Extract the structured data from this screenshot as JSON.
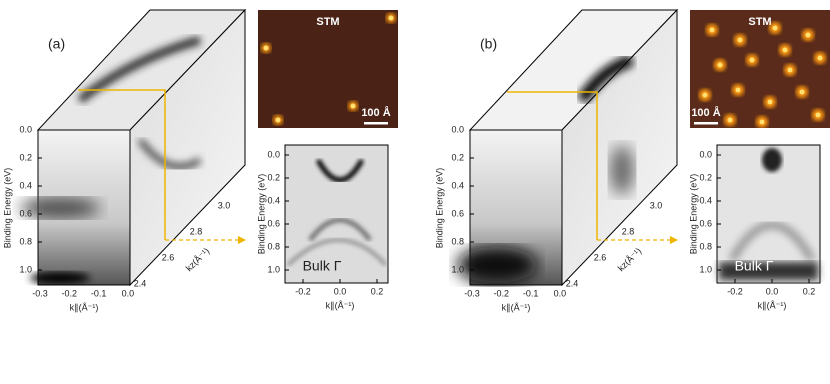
{
  "panels": [
    {
      "label": "(a)",
      "arpes": {
        "y_axis_label": "Binding Energy (eV)",
        "y_ticks": [
          "0.0",
          "0.2",
          "0.4",
          "0.6",
          "0.8",
          "1.0"
        ],
        "x_axis_label": "k∥(Å⁻¹)",
        "x_ticks": [
          "-0.3",
          "-0.2",
          "-0.1",
          "0.0"
        ],
        "kz_axis_label": "kz(Å⁻¹)",
        "kz_ticks": [
          "2.4",
          "2.6",
          "2.8",
          "3.0"
        ]
      },
      "stm": {
        "title": "STM",
        "scale_bar": "100 Å"
      },
      "bulk": {
        "label": "Bulk Γ",
        "y_axis_label": "Binding Energy (eV)",
        "y_ticks": [
          "0.0",
          "0.2",
          "0.4",
          "0.6",
          "0.8",
          "1.0"
        ],
        "x_axis_label": "k∥(Å⁻¹)",
        "x_ticks": [
          "-0.2",
          "0.0",
          "0.2"
        ]
      }
    },
    {
      "label": "(b)",
      "arpes": {
        "y_axis_label": "Binding Energy (eV)",
        "y_ticks": [
          "0.0",
          "0.2",
          "0.4",
          "0.6",
          "0.8",
          "1.0"
        ],
        "x_axis_label": "k∥(Å⁻¹)",
        "x_ticks": [
          "-0.3",
          "-0.2",
          "-0.1",
          "0.0"
        ],
        "kz_axis_label": "kz(Å⁻¹)",
        "kz_ticks": [
          "2.4",
          "2.6",
          "2.8",
          "3.0"
        ]
      },
      "stm": {
        "title": "STM",
        "scale_bar": "100 Å"
      },
      "bulk": {
        "label": "Bulk Γ",
        "y_axis_label": "Binding Energy (eV)",
        "y_ticks": [
          "0.0",
          "0.2",
          "0.4",
          "0.6",
          "0.8",
          "1.0"
        ],
        "x_axis_label": "k∥(Å⁻¹)",
        "x_ticks": [
          "-0.2",
          "0.0",
          "0.2"
        ]
      }
    }
  ]
}
